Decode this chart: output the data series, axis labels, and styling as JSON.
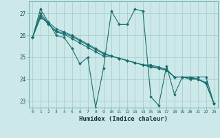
{
  "title": "",
  "xlabel": "Humidex (Indice chaleur)",
  "ylabel": "",
  "background_color": "#cce8e8",
  "grid_color": "#aacfcf",
  "line_color": "#1a6e6e",
  "xlim": [
    -0.5,
    23.5
  ],
  "ylim": [
    22.7,
    27.55
  ],
  "yticks": [
    23,
    24,
    25,
    26,
    27
  ],
  "xticks": [
    0,
    1,
    2,
    3,
    4,
    5,
    6,
    7,
    8,
    9,
    10,
    11,
    12,
    13,
    14,
    15,
    16,
    17,
    18,
    19,
    20,
    21,
    22,
    23
  ],
  "series": [
    [
      25.9,
      27.2,
      26.6,
      26.0,
      25.9,
      25.4,
      24.7,
      25.0,
      22.7,
      24.5,
      27.1,
      26.5,
      26.5,
      27.2,
      27.1,
      23.2,
      22.8,
      24.6,
      23.3,
      24.1,
      24.1,
      24.1,
      24.1,
      22.9
    ],
    [
      25.9,
      27.0,
      26.55,
      26.15,
      26.05,
      25.85,
      25.65,
      25.45,
      25.25,
      25.05,
      25.05,
      24.95,
      24.85,
      24.75,
      24.65,
      24.65,
      24.55,
      24.45,
      24.1,
      24.1,
      24.05,
      24.0,
      23.85,
      22.9
    ],
    [
      25.9,
      26.9,
      26.5,
      26.2,
      26.1,
      25.95,
      25.75,
      25.55,
      25.35,
      25.15,
      25.05,
      24.95,
      24.85,
      24.75,
      24.65,
      24.6,
      24.5,
      24.4,
      24.1,
      24.1,
      24.1,
      24.0,
      23.8,
      22.9
    ],
    [
      25.9,
      26.8,
      26.6,
      26.3,
      26.15,
      26.0,
      25.8,
      25.6,
      25.4,
      25.2,
      25.05,
      24.95,
      24.85,
      24.75,
      24.65,
      24.55,
      24.5,
      24.4,
      24.1,
      24.1,
      24.0,
      24.0,
      23.8,
      22.9
    ]
  ]
}
